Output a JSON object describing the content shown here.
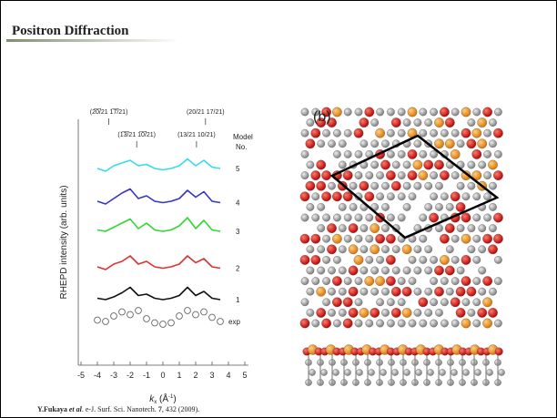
{
  "slide": {
    "title": "Positron Diffraction",
    "citation": [
      "Y.Fukaya",
      " et al",
      ". e-J. Surf. Sci. Nanotech. ",
      "7",
      ", 432 (2009)."
    ]
  },
  "figure_b": {
    "label": "(b)"
  },
  "chart_data": {
    "type": "line",
    "y_label": "RHEPD intensity (arb. units)",
    "x_label": [
      "k",
      "x",
      " (Å",
      "-1",
      ")"
    ],
    "model_label": [
      "Model",
      "No."
    ],
    "annotations": [
      {
        "text": "(2̅0̅/21 1̅7̅/21)",
        "x": -3.3
      },
      {
        "text": "(20/21 17/21)",
        "x": 2.6
      },
      {
        "text": "(1̅3̅/21 1̅0̅/21)",
        "x": -1.6
      },
      {
        "text": "(13/21 10/21)",
        "x": 2.05
      }
    ],
    "xlim": [
      -5,
      5
    ],
    "xticks": [
      -5,
      -4,
      -3,
      -2,
      -1,
      0,
      1,
      2,
      3,
      4,
      5
    ],
    "ylim": [
      -1,
      8
    ],
    "x": [
      -4,
      -3.5,
      -3,
      -2.5,
      -2,
      -1.5,
      -1,
      -0.5,
      0,
      0.5,
      1,
      1.5,
      2,
      2.5,
      3,
      3.5
    ],
    "series": [
      {
        "name": "5",
        "color": "#35dbee",
        "values": [
          6.2,
          6.1,
          6.3,
          6.4,
          6.5,
          6.3,
          6.35,
          6.2,
          6.15,
          6.2,
          6.3,
          6.55,
          6.3,
          6.5,
          6.25,
          6.2
        ]
      },
      {
        "name": "4",
        "color": "#3535c8",
        "values": [
          5.0,
          4.9,
          5.1,
          5.3,
          5.45,
          5.1,
          5.2,
          5.0,
          4.95,
          5.0,
          5.1,
          5.4,
          5.15,
          5.35,
          5.0,
          4.95
        ]
      },
      {
        "name": "3",
        "color": "#30d830",
        "values": [
          3.95,
          3.9,
          4.05,
          4.2,
          4.35,
          4.0,
          4.2,
          3.95,
          3.9,
          3.95,
          4.1,
          4.4,
          4.0,
          4.3,
          3.95,
          3.9
        ]
      },
      {
        "name": "2",
        "color": "#e03030",
        "values": [
          2.6,
          2.5,
          2.7,
          2.8,
          3.0,
          2.7,
          2.8,
          2.6,
          2.55,
          2.6,
          2.7,
          3.0,
          2.75,
          2.9,
          2.6,
          2.55
        ]
      },
      {
        "name": "1",
        "color": "#111111",
        "values": [
          1.45,
          1.4,
          1.5,
          1.65,
          1.85,
          1.55,
          1.6,
          1.45,
          1.4,
          1.45,
          1.55,
          1.85,
          1.55,
          1.7,
          1.45,
          1.4
        ]
      },
      {
        "name": "exp",
        "color": "#666666",
        "marker": "circle",
        "values": [
          0.65,
          0.6,
          0.8,
          0.95,
          0.85,
          1.0,
          0.7,
          0.55,
          0.5,
          0.55,
          0.8,
          1.0,
          0.85,
          0.95,
          0.75,
          0.6
        ]
      }
    ]
  }
}
